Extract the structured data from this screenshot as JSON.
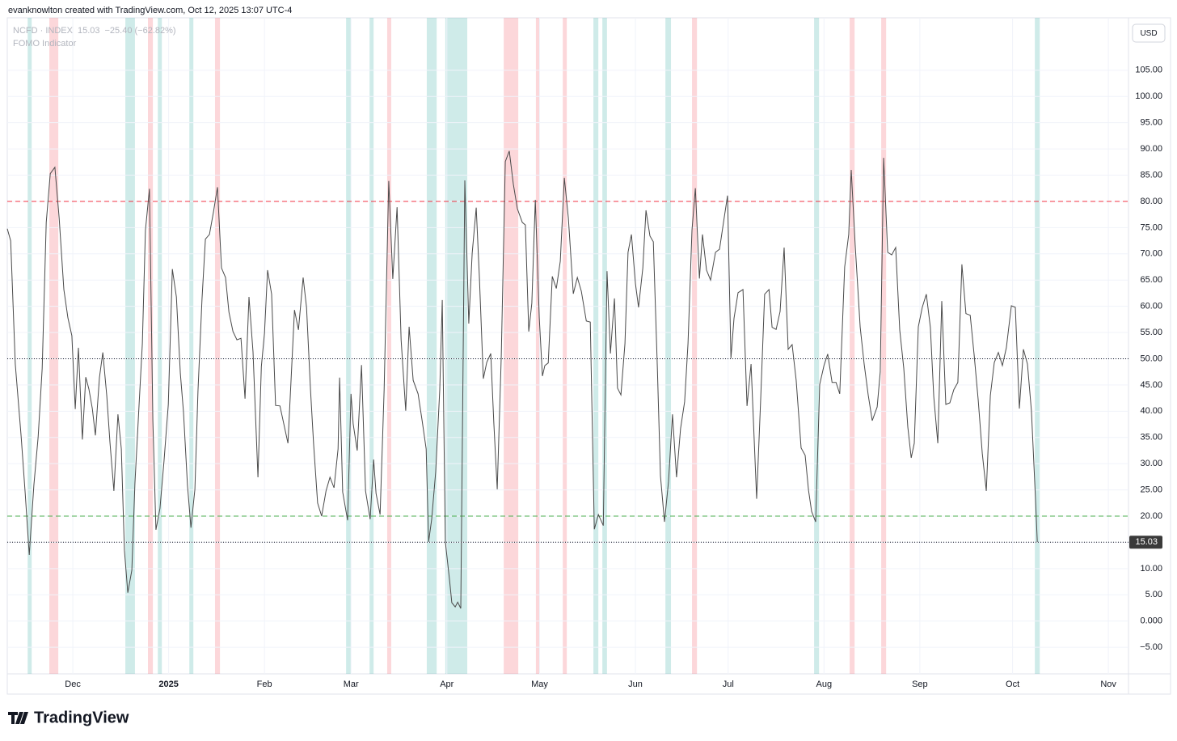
{
  "header": {
    "credit": "evanknowlton created with TradingView.com, Oct 12, 2025 13:07 UTC-4",
    "symbol": "NCFD · INDEX",
    "last": "15.03",
    "change": "−25.40 (−62.82%)"
  },
  "currency": "USD",
  "brand": "TradingView",
  "chart_data": {
    "type": "line",
    "x": [
      8.8,
      9.9,
      11.4,
      13.3,
      14.6,
      15.9,
      17.4,
      18.8,
      20.1,
      21.4,
      22.7,
      24.2,
      25.6,
      27.1,
      28.4,
      29.7,
      30.8,
      31.8,
      33.1,
      34.2,
      35.2,
      36.3,
      37.3,
      38.6,
      39.7,
      41.0,
      42.0,
      43.3,
      44.6,
      45.7,
      46.7,
      47.8,
      49.1,
      50.1,
      51.4,
      52.5,
      53.5,
      54.8,
      55.9,
      56.9,
      58.2,
      59.5,
      60.9,
      62.2,
      63.5,
      64.8,
      65.8,
      67.1,
      68.2,
      69.5,
      70.5,
      71.8,
      72.9,
      74.2,
      75.5,
      76.8,
      78.1,
      79.4,
      80.5,
      81.8,
      83.1,
      84.4,
      85.7,
      87.0,
      88.3,
      89.9,
      91.0,
      92.0,
      93.0,
      94.3,
      95.6,
      97.0,
      98.2,
      99.6,
      100.6,
      101.7,
      103.0,
      104.5,
      105.6,
      106.9,
      107.9,
      109.2,
      110.5,
      111.9,
      113.2,
      114.5,
      115.8,
      116.3,
      117.3,
      118.9,
      120.0,
      120.7,
      122.0,
      123.4,
      124.7,
      126.2,
      127.3,
      128.1,
      129.4,
      130.7,
      132.2,
      133.5,
      134.9,
      136.2,
      137.7,
      138.8,
      140.1,
      141.7,
      143.0,
      144.3,
      145.1,
      146.1,
      147.4,
      148.7,
      149.5,
      150.5,
      151.9,
      152.6,
      153.7,
      154.5,
      155.5,
      156.8,
      158.1,
      159.2,
      160.5,
      161.5,
      162.8,
      163.9,
      165.2,
      166.2,
      167.3,
      168.6,
      169.9,
      171.2,
      172.5,
      173.8,
      175.4,
      176.4,
      177.5,
      178.5,
      179.6,
      180.9,
      181.9,
      182.7,
      183.8,
      185.1,
      186.4,
      187.7,
      189.0,
      190.3,
      191.9,
      193.2,
      194.5,
      196.1,
      197.4,
      198.7,
      200.0,
      201.6,
      202.8,
      203.9,
      205.2,
      206.2,
      207.3,
      208.6,
      209.6,
      210.7,
      212.0,
      213.0,
      214.4,
      215.4,
      216.7,
      217.8,
      219.1,
      220.1,
      221.4,
      222.7,
      224.0,
      225.3,
      226.6,
      227.9,
      229.0,
      230.3,
      231.4,
      232.7,
      233.7,
      235.0,
      236.3,
      237.9,
      239.2,
      240.5,
      241.8,
      242.9,
      243.9,
      245.2,
      246.8,
      248.1,
      249.4,
      251.2,
      252.5,
      253.8,
      255.2,
      256.2,
      257.5,
      258.8,
      260.1,
      261.4,
      262.7,
      264.0,
      265.6,
      266.9,
      268.0,
      269.0,
      270.3,
      271.6,
      273.0,
      274.2,
      275.6,
      276.9,
      278.1,
      279.7,
      281.0,
      281.8,
      283.1,
      284.7,
      286.0,
      287.3,
      288.6,
      290.2,
      291.2,
      292.3,
      293.6,
      294.9,
      296.2,
      297.5,
      298.8,
      300.1,
      301.2,
      302.2,
      303.5,
      304.8,
      306.1,
      307.4,
      308.5,
      309.8,
      311.1,
      312.4,
      313.7,
      315.0,
      316.3,
      317.6,
      318.9,
      320.3,
      321.6,
      322.9,
      324.2,
      325.5,
      326.8,
      328.1,
      329.4,
      330.7,
      332.0,
      333.6,
      334.9,
      336.2,
      337.5,
      338.8,
      340.1,
      341.4,
      342.0
    ],
    "series": [
      {
        "name": "FOMO Indicator",
        "color": "#4a4a4a",
        "values": [
          74.8,
          72.5,
          49.0,
          35.1,
          24.3,
          12.6,
          25.9,
          35.1,
          48.2,
          76.0,
          85.3,
          86.5,
          76.8,
          63.2,
          57.8,
          54.4,
          40.4,
          52.1,
          34.6,
          46.5,
          44.2,
          40.5,
          35.4,
          46.4,
          51.2,
          42.9,
          34.1,
          24.8,
          39.4,
          32.8,
          13.5,
          5.4,
          9.7,
          26.2,
          40.8,
          52.9,
          74.5,
          82.4,
          38.2,
          17.4,
          21.5,
          30.5,
          41.3,
          67.1,
          61.8,
          47.2,
          39.8,
          25.9,
          17.8,
          25.1,
          43.8,
          61.4,
          72.8,
          73.7,
          78.0,
          82.7,
          67.3,
          65.5,
          58.9,
          55.2,
          53.6,
          53.9,
          42.4,
          61.8,
          51.3,
          27.4,
          48.5,
          54.9,
          66.9,
          62.3,
          41.1,
          41.0,
          37.7,
          33.9,
          46.1,
          59.3,
          55.5,
          65.5,
          59.8,
          44.1,
          33.6,
          22.5,
          20.0,
          24.8,
          27.4,
          25.4,
          32.8,
          46.4,
          24.6,
          19.2,
          43.3,
          37.6,
          32.5,
          48.8,
          24.8,
          19.4,
          30.8,
          24.3,
          20.3,
          44.1,
          83.9,
          65.2,
          78.9,
          53.6,
          40.1,
          56.1,
          45.9,
          43.3,
          38.2,
          32.8,
          15.1,
          19.4,
          28.5,
          44.1,
          61.2,
          15.1,
          7.7,
          3.5,
          2.7,
          3.6,
          2.4,
          84.0,
          56.7,
          70.1,
          78.8,
          66.0,
          46.2,
          49.3,
          51.0,
          37.7,
          25.1,
          50.5,
          87.6,
          89.6,
          83.3,
          78.6,
          76.0,
          75.5,
          55.2,
          60.6,
          80.3,
          57.8,
          46.7,
          48.7,
          49.2,
          65.7,
          63.4,
          68.6,
          84.5,
          76.8,
          62.4,
          65.5,
          62.9,
          57.2,
          57.0,
          17.5,
          20.3,
          18.2,
          66.7,
          51.0,
          61.5,
          44.4,
          43.1,
          52.9,
          70.3,
          73.7,
          64.3,
          59.8,
          67.3,
          78.3,
          73.4,
          72.3,
          48.2,
          27.7,
          18.9,
          26.6,
          39.4,
          27.4,
          36.7,
          41.8,
          52.9,
          74.5,
          82.5,
          65.3,
          73.7,
          66.9,
          65.0,
          70.3,
          70.9,
          76.0,
          81.1,
          50.1,
          57.7,
          62.6,
          63.2,
          41.0,
          49.0,
          23.3,
          41.9,
          62.3,
          63.2,
          56.0,
          55.6,
          59.0,
          71.2,
          51.8,
          52.7,
          45.9,
          33.0,
          31.6,
          24.9,
          20.9,
          18.9,
          45.1,
          48.7,
          50.9,
          45.5,
          45.5,
          43.3,
          67.5,
          73.7,
          86.0,
          71.7,
          56.0,
          49.0,
          43.1,
          38.2,
          40.8,
          47.5,
          88.3,
          70.3,
          69.8,
          71.2,
          55.5,
          48.2,
          37.0,
          31.1,
          33.9,
          56.1,
          59.8,
          62.3,
          56.0,
          42.8,
          33.9,
          61.0,
          41.3,
          41.6,
          44.1,
          45.5,
          68.0,
          58.6,
          58.3,
          50.5,
          42.1,
          32.0,
          24.8,
          43.0,
          49.3,
          51.2,
          48.7,
          52.1,
          60.1,
          59.8,
          40.5,
          51.8,
          49.0,
          40.1,
          23.5,
          15.03
        ]
      }
    ],
    "bands": [
      {
        "color": "rgba(38,166,154,0.22)",
        "ranges": [
          [
            15.4,
            16.7
          ],
          [
            47.0,
            50.1
          ],
          [
            57.5,
            58.8
          ],
          [
            67.7,
            69.0
          ],
          [
            118.4,
            120.0
          ],
          [
            126.0,
            127.3
          ],
          [
            144.5,
            147.7
          ],
          [
            150.5,
            157.6
          ],
          [
            198.4,
            200.0
          ],
          [
            201.3,
            202.8
          ],
          [
            221.7,
            223.5
          ],
          [
            269.8,
            271.4
          ],
          [
            341.2,
            342.8
          ]
        ]
      },
      {
        "color": "rgba(242,54,69,0.2)",
        "ranges": [
          [
            22.4,
            25.3
          ],
          [
            54.3,
            55.9
          ],
          [
            76.0,
            77.6
          ],
          [
            131.7,
            133.0
          ],
          [
            169.4,
            174.1
          ],
          [
            179.8,
            181.1
          ],
          [
            188.5,
            189.8
          ],
          [
            230.3,
            231.9
          ],
          [
            281.3,
            282.9
          ],
          [
            291.5,
            293.1
          ]
        ]
      }
    ],
    "hlines": [
      {
        "value": 80,
        "color": "#f23645",
        "style": "dashed"
      },
      {
        "value": 50,
        "color": "#131722",
        "style": "dotted"
      },
      {
        "value": 20,
        "color": "#4caf50",
        "style": "dashed"
      }
    ],
    "xlim": [
      8.8,
      371.5
    ],
    "xticks": [
      {
        "value": 30,
        "label": "Dec"
      },
      {
        "value": 61,
        "label": "2025"
      },
      {
        "value": 92,
        "label": "Feb"
      },
      {
        "value": 120,
        "label": "Mar"
      },
      {
        "value": 151,
        "label": "Apr"
      },
      {
        "value": 181,
        "label": "May"
      },
      {
        "value": 212,
        "label": "Jun"
      },
      {
        "value": 242,
        "label": "Jul"
      },
      {
        "value": 273,
        "label": "Aug"
      },
      {
        "value": 304,
        "label": "Sep"
      },
      {
        "value": 334,
        "label": "Oct"
      },
      {
        "value": 365,
        "label": "Nov"
      }
    ],
    "ylim": [
      -10.07,
      115
    ],
    "yticks": [
      {
        "value": -5,
        "label": "−5.00"
      },
      {
        "value": 0,
        "label": "0.000"
      },
      {
        "value": 5,
        "label": "5.00"
      },
      {
        "value": 10,
        "label": "10.00"
      },
      {
        "value": 15,
        "label": "15.00"
      },
      {
        "value": 20,
        "label": "20.00"
      },
      {
        "value": 25,
        "label": "25.00"
      },
      {
        "value": 30,
        "label": "30.00"
      },
      {
        "value": 35,
        "label": "35.00"
      },
      {
        "value": 40,
        "label": "40.00"
      },
      {
        "value": 45,
        "label": "45.00"
      },
      {
        "value": 50,
        "label": "50.00"
      },
      {
        "value": 55,
        "label": "55.00"
      },
      {
        "value": 60,
        "label": "60.00"
      },
      {
        "value": 65,
        "label": "65.00"
      },
      {
        "value": 70,
        "label": "70.00"
      },
      {
        "value": 75,
        "label": "75.00"
      },
      {
        "value": 80,
        "label": "80.00"
      },
      {
        "value": 85,
        "label": "85.00"
      },
      {
        "value": 90,
        "label": "90.00"
      },
      {
        "value": 95,
        "label": "95.00"
      },
      {
        "value": 100,
        "label": "100.00"
      },
      {
        "value": 105,
        "label": "105.00"
      }
    ],
    "grid": true
  }
}
